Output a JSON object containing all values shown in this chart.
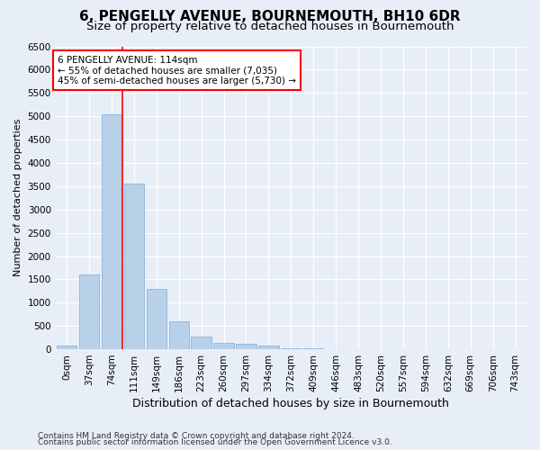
{
  "title": "6, PENGELLY AVENUE, BOURNEMOUTH, BH10 6DR",
  "subtitle": "Size of property relative to detached houses in Bournemouth",
  "xlabel": "Distribution of detached houses by size in Bournemouth",
  "ylabel": "Number of detached properties",
  "footer_line1": "Contains HM Land Registry data © Crown copyright and database right 2024.",
  "footer_line2": "Contains public sector information licensed under the Open Government Licence v3.0.",
  "categories": [
    "0sqm",
    "37sqm",
    "74sqm",
    "111sqm",
    "149sqm",
    "186sqm",
    "223sqm",
    "260sqm",
    "297sqm",
    "334sqm",
    "372sqm",
    "409sqm",
    "446sqm",
    "483sqm",
    "520sqm",
    "557sqm",
    "594sqm",
    "632sqm",
    "669sqm",
    "706sqm",
    "743sqm"
  ],
  "values": [
    70,
    1600,
    5050,
    3550,
    1300,
    600,
    280,
    130,
    110,
    70,
    30,
    15,
    10,
    3,
    2,
    1,
    1,
    0,
    0,
    0,
    0
  ],
  "bar_color": "#b8d0e8",
  "bar_edge_color": "#7bafd4",
  "vline_color": "red",
  "vline_pos": 2.5,
  "annotation_text": "6 PENGELLY AVENUE: 114sqm\n← 55% of detached houses are smaller (7,035)\n45% of semi-detached houses are larger (5,730) →",
  "annotation_box_color": "white",
  "annotation_box_edge": "red",
  "ylim": [
    0,
    6500
  ],
  "yticks": [
    0,
    500,
    1000,
    1500,
    2000,
    2500,
    3000,
    3500,
    4000,
    4500,
    5000,
    5500,
    6000,
    6500
  ],
  "bg_color": "#e8eef8",
  "plot_bg_color": "#e8eef8",
  "grid_color": "white",
  "title_fontsize": 11,
  "subtitle_fontsize": 9.5,
  "xlabel_fontsize": 9,
  "ylabel_fontsize": 8,
  "tick_fontsize": 7.5,
  "annotation_fontsize": 7.5,
  "footer_fontsize": 6.5
}
